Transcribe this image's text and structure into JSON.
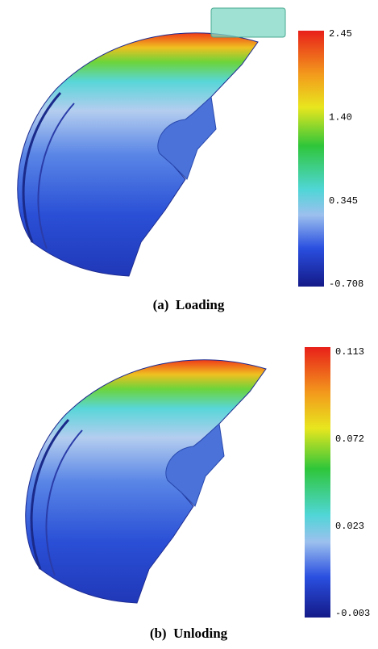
{
  "figures": [
    {
      "caption": "(a)  Loading",
      "colorbar": {
        "labels": [
          "2.45",
          "1.40",
          "0.345",
          "-0.708"
        ]
      }
    },
    {
      "caption": "(b)  Unloding",
      "colorbar": {
        "labels": [
          "0.113",
          "0.072",
          "0.023",
          "-0.003"
        ]
      }
    }
  ]
}
